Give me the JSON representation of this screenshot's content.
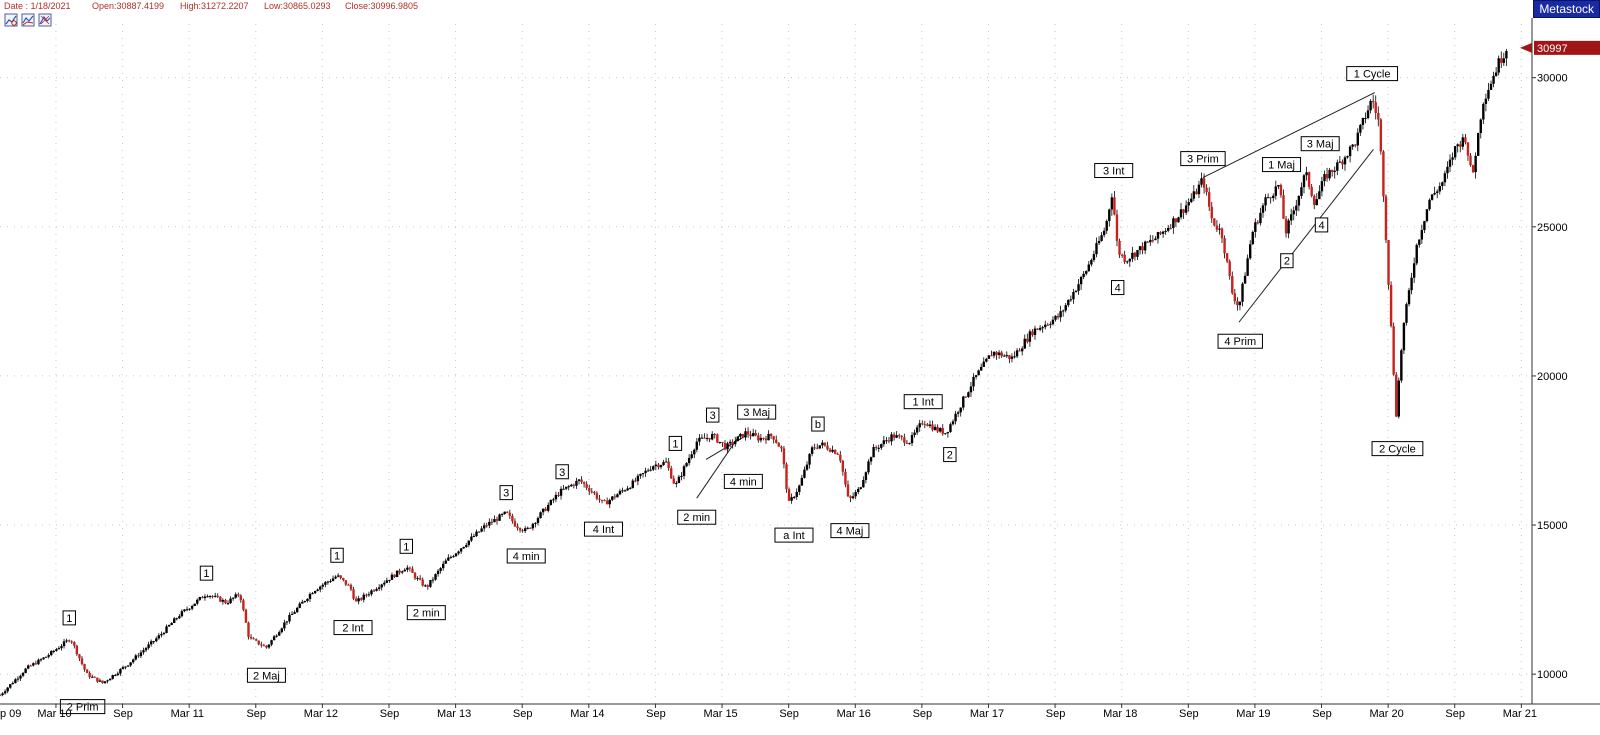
{
  "header": {
    "date": "Date : 1/18/2021",
    "open": "Open:30887.4199",
    "high": "High:31272.2207",
    "low": "Low:30865.0293",
    "close": "Close:30996.9805",
    "brand": "Metastock"
  },
  "toolbar": {
    "buttons": [
      {
        "icon": "chart-zoom-icon"
      },
      {
        "icon": "chart-compare-icon"
      },
      {
        "icon": "chart-settings-icon"
      }
    ]
  },
  "colors": {
    "up": "#000000",
    "down": "#c8221d",
    "grid": "#c8c8c8",
    "price_marker": "#a01515",
    "header_text": "#b0302a",
    "brand_bg": "#1a2aa0"
  },
  "chart_data": {
    "type": "candlestick",
    "title": "",
    "xlabel": "",
    "ylabel": "",
    "x_range": [
      2009.75,
      2021.25
    ],
    "ylim": [
      9000,
      31800
    ],
    "grid": true,
    "last_price_label": "30997",
    "y_ticks": [
      {
        "value": 10000,
        "label": "10000"
      },
      {
        "value": 15000,
        "label": "15000"
      },
      {
        "value": 20000,
        "label": "20000"
      },
      {
        "value": 25000,
        "label": "25000"
      },
      {
        "value": 30000,
        "label": "30000"
      }
    ],
    "x_ticks": [
      {
        "t": 2009.72,
        "label": "p 09"
      },
      {
        "t": 2010.17,
        "label": "Mar 10"
      },
      {
        "t": 2010.67,
        "label": "Sep"
      },
      {
        "t": 2011.17,
        "label": "Mar 11"
      },
      {
        "t": 2011.67,
        "label": "Sep"
      },
      {
        "t": 2012.17,
        "label": "Mar 12"
      },
      {
        "t": 2012.67,
        "label": "Sep"
      },
      {
        "t": 2013.17,
        "label": "Mar 13"
      },
      {
        "t": 2013.67,
        "label": "Sep"
      },
      {
        "t": 2014.17,
        "label": "Mar 14"
      },
      {
        "t": 2014.67,
        "label": "Sep"
      },
      {
        "t": 2015.17,
        "label": "Mar 15"
      },
      {
        "t": 2015.67,
        "label": "Sep"
      },
      {
        "t": 2016.17,
        "label": "Mar 16"
      },
      {
        "t": 2016.67,
        "label": "Sep"
      },
      {
        "t": 2017.17,
        "label": "Mar 17"
      },
      {
        "t": 2017.67,
        "label": "Sep"
      },
      {
        "t": 2018.17,
        "label": "Mar 18"
      },
      {
        "t": 2018.67,
        "label": "Sep"
      },
      {
        "t": 2019.17,
        "label": "Mar 19"
      },
      {
        "t": 2019.67,
        "label": "Sep"
      },
      {
        "t": 2020.17,
        "label": "Mar 20"
      },
      {
        "t": 2020.67,
        "label": "Sep"
      },
      {
        "t": 2021.17,
        "label": "Mar 21"
      }
    ],
    "price_path": [
      [
        2009.75,
        9300
      ],
      [
        2009.95,
        10200
      ],
      [
        2010.1,
        10600
      ],
      [
        2010.28,
        11200
      ],
      [
        2010.4,
        10000
      ],
      [
        2010.52,
        9700
      ],
      [
        2010.7,
        10300
      ],
      [
        2010.95,
        11300
      ],
      [
        2011.1,
        12000
      ],
      [
        2011.3,
        12700
      ],
      [
        2011.45,
        12400
      ],
      [
        2011.55,
        12700
      ],
      [
        2011.62,
        11200
      ],
      [
        2011.75,
        10900
      ],
      [
        2011.9,
        11800
      ],
      [
        2012.1,
        12800
      ],
      [
        2012.28,
        13300
      ],
      [
        2012.38,
        12900
      ],
      [
        2012.42,
        12400
      ],
      [
        2012.6,
        13000
      ],
      [
        2012.8,
        13600
      ],
      [
        2012.88,
        13200
      ],
      [
        2012.95,
        12900
      ],
      [
        2013.1,
        13800
      ],
      [
        2013.4,
        15000
      ],
      [
        2013.55,
        15400
      ],
      [
        2013.62,
        15000
      ],
      [
        2013.7,
        14800
      ],
      [
        2013.95,
        16100
      ],
      [
        2014.1,
        16500
      ],
      [
        2014.2,
        16100
      ],
      [
        2014.28,
        15700
      ],
      [
        2014.5,
        16400
      ],
      [
        2014.65,
        17000
      ],
      [
        2014.75,
        17100
      ],
      [
        2014.82,
        16300
      ],
      [
        2014.98,
        17800
      ],
      [
        2015.1,
        18000
      ],
      [
        2015.2,
        17600
      ],
      [
        2015.35,
        18100
      ],
      [
        2015.45,
        17900
      ],
      [
        2015.55,
        18000
      ],
      [
        2015.62,
        17500
      ],
      [
        2015.67,
        15700
      ],
      [
        2015.75,
        16300
      ],
      [
        2015.85,
        17600
      ],
      [
        2015.92,
        17700
      ],
      [
        2016.05,
        17400
      ],
      [
        2016.12,
        15800
      ],
      [
        2016.2,
        16200
      ],
      [
        2016.3,
        17500
      ],
      [
        2016.45,
        18000
      ],
      [
        2016.58,
        17800
      ],
      [
        2016.68,
        18500
      ],
      [
        2016.78,
        18200
      ],
      [
        2016.85,
        18100
      ],
      [
        2016.9,
        18500
      ],
      [
        2017.05,
        19800
      ],
      [
        2017.2,
        20800
      ],
      [
        2017.35,
        20600
      ],
      [
        2017.5,
        21500
      ],
      [
        2017.7,
        22000
      ],
      [
        2017.9,
        23500
      ],
      [
        2018.05,
        25000
      ],
      [
        2018.1,
        26200
      ],
      [
        2018.14,
        24200
      ],
      [
        2018.2,
        23900
      ],
      [
        2018.32,
        24300
      ],
      [
        2018.45,
        24700
      ],
      [
        2018.58,
        25300
      ],
      [
        2018.72,
        26100
      ],
      [
        2018.78,
        26600
      ],
      [
        2018.85,
        25200
      ],
      [
        2018.92,
        24800
      ],
      [
        2019.0,
        22800
      ],
      [
        2019.05,
        22300
      ],
      [
        2019.15,
        24800
      ],
      [
        2019.25,
        25900
      ],
      [
        2019.35,
        26400
      ],
      [
        2019.4,
        24800
      ],
      [
        2019.45,
        25400
      ],
      [
        2019.55,
        26800
      ],
      [
        2019.62,
        25800
      ],
      [
        2019.7,
        26700
      ],
      [
        2019.8,
        27100
      ],
      [
        2019.92,
        27800
      ],
      [
        2020.05,
        29300
      ],
      [
        2020.1,
        28500
      ],
      [
        2020.14,
        25800
      ],
      [
        2020.2,
        21000
      ],
      [
        2020.23,
        18700
      ],
      [
        2020.28,
        21500
      ],
      [
        2020.38,
        24300
      ],
      [
        2020.48,
        25900
      ],
      [
        2020.58,
        26500
      ],
      [
        2020.68,
        27700
      ],
      [
        2020.75,
        28000
      ],
      [
        2020.8,
        26600
      ],
      [
        2020.88,
        29200
      ],
      [
        2021.0,
        30500
      ],
      [
        2021.06,
        31000
      ]
    ],
    "wave_labels": [
      {
        "text": "2 Prim",
        "t": 2010.37,
        "price": 9550,
        "pos": "below"
      },
      {
        "text": "1",
        "t": 2010.27,
        "price": 11250,
        "pos": "above"
      },
      {
        "text": "1",
        "t": 2011.3,
        "price": 12750,
        "pos": "above"
      },
      {
        "text": "2 Maj",
        "t": 2011.75,
        "price": 10600,
        "pos": "below"
      },
      {
        "text": "1",
        "t": 2012.28,
        "price": 13350,
        "pos": "above"
      },
      {
        "text": "2 Int",
        "t": 2012.4,
        "price": 12200,
        "pos": "below"
      },
      {
        "text": "1",
        "t": 2012.8,
        "price": 13650,
        "pos": "above"
      },
      {
        "text": "2 min",
        "t": 2012.95,
        "price": 12700,
        "pos": "below"
      },
      {
        "text": "3",
        "t": 2013.55,
        "price": 15450,
        "pos": "above"
      },
      {
        "text": "4 min",
        "t": 2013.7,
        "price": 14600,
        "pos": "below"
      },
      {
        "text": "3",
        "t": 2013.97,
        "price": 16150,
        "pos": "above"
      },
      {
        "text": "4 Int",
        "t": 2014.28,
        "price": 15500,
        "pos": "below"
      },
      {
        "text": "1",
        "t": 2014.82,
        "price": 17100,
        "pos": "above"
      },
      {
        "text": "2 min",
        "t": 2014.98,
        "price": 15900,
        "pos": "below"
      },
      {
        "text": "3",
        "t": 2015.1,
        "price": 18050,
        "pos": "above"
      },
      {
        "text": "4 min",
        "t": 2015.33,
        "price": 17100,
        "pos": "below"
      },
      {
        "text": "3 Maj",
        "t": 2015.43,
        "price": 18150,
        "pos": "above"
      },
      {
        "text": "a Int",
        "t": 2015.71,
        "price": 15300,
        "pos": "below"
      },
      {
        "text": "b",
        "t": 2015.89,
        "price": 17750,
        "pos": "above"
      },
      {
        "text": "4 Maj",
        "t": 2016.13,
        "price": 15450,
        "pos": "below"
      },
      {
        "text": "1 Int",
        "t": 2016.68,
        "price": 18500,
        "pos": "above"
      },
      {
        "text": "2",
        "t": 2016.88,
        "price": 18000,
        "pos": "below"
      },
      {
        "text": "3 Int",
        "t": 2018.11,
        "price": 26250,
        "pos": "above"
      },
      {
        "text": "4",
        "t": 2018.14,
        "price": 23600,
        "pos": "below"
      },
      {
        "text": "3 Prim",
        "t": 2018.78,
        "price": 26650,
        "pos": "above"
      },
      {
        "text": "4 Prim",
        "t": 2019.06,
        "price": 21800,
        "pos": "below"
      },
      {
        "text": "1 Maj",
        "t": 2019.37,
        "price": 26450,
        "pos": "above"
      },
      {
        "text": "2",
        "t": 2019.41,
        "price": 24500,
        "pos": "below"
      },
      {
        "text": "3 Maj",
        "t": 2019.66,
        "price": 27150,
        "pos": "above"
      },
      {
        "text": "4",
        "t": 2019.67,
        "price": 25700,
        "pos": "below"
      },
      {
        "text": "1 Cycle",
        "t": 2020.05,
        "price": 29500,
        "pos": "above"
      },
      {
        "text": "2 Cycle",
        "t": 2020.24,
        "price": 18200,
        "pos": "below"
      }
    ],
    "trendlines": [
      {
        "from": [
          2014.98,
          15900
        ],
        "to": [
          2015.3,
          18000
        ]
      },
      {
        "from": [
          2015.05,
          17200
        ],
        "to": [
          2015.35,
          18000
        ]
      },
      {
        "from": [
          2018.78,
          26650
        ],
        "to": [
          2020.07,
          29500
        ]
      },
      {
        "from": [
          2019.05,
          21800
        ],
        "to": [
          2020.06,
          27600
        ]
      }
    ]
  }
}
